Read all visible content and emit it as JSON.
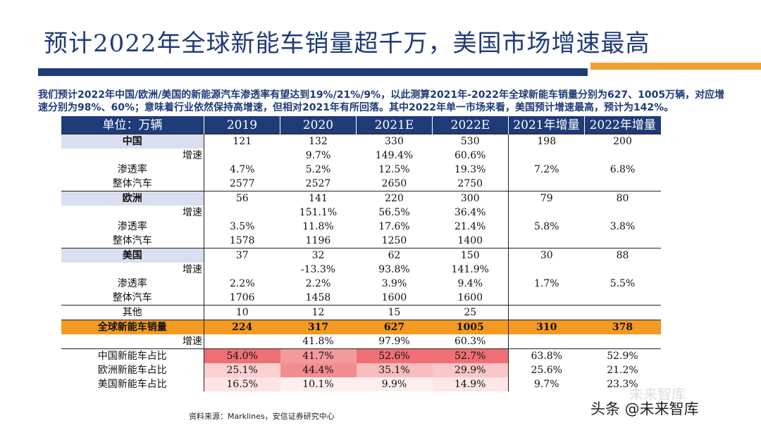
{
  "title": "预计2022年全球新能车销量超千万，美国市场增速最高",
  "intro": "我们预计2022年中国/欧洲/美国的新能源汽车渗透率有望达到19%/21%/9%，以此测算2021年-2022年全球新能车销量分别为627、1005万辆，对应增速分别为98%、60%；意味着行业依然保持高增速，但相对2021年有所回落。其中2022年单一市场来看，美国预计增速最高，预计为142%。",
  "table": {
    "headers": [
      "单位：万辆",
      "2019",
      "2020",
      "2021E",
      "2022E",
      "2021年增量",
      "2022年增量"
    ],
    "rows": [
      [
        "中国",
        "121",
        "132",
        "330",
        "530",
        "198",
        "200"
      ],
      [
        "增速",
        "",
        "9.7%",
        "149.4%",
        "60.6%",
        "",
        ""
      ],
      [
        "渗透率",
        "4.7%",
        "5.2%",
        "12.5%",
        "19.3%",
        "7.2%",
        "6.8%"
      ],
      [
        "整体汽车",
        "2577",
        "2527",
        "2650",
        "2750",
        "",
        ""
      ],
      [
        "欧洲",
        "56",
        "141",
        "220",
        "300",
        "79",
        "80"
      ],
      [
        "增速",
        "",
        "151.1%",
        "56.5%",
        "36.4%",
        "",
        ""
      ],
      [
        "渗透率",
        "3.5%",
        "11.8%",
        "17.6%",
        "21.4%",
        "5.8%",
        "3.8%"
      ],
      [
        "整体汽车",
        "1578",
        "1196",
        "1250",
        "1400",
        "",
        ""
      ],
      [
        "美国",
        "37",
        "32",
        "62",
        "150",
        "30",
        "88"
      ],
      [
        "增速",
        "",
        "-13.3%",
        "93.8%",
        "141.9%",
        "",
        ""
      ],
      [
        "渗透率",
        "2.2%",
        "2.2%",
        "3.9%",
        "9.4%",
        "1.7%",
        "5.5%"
      ],
      [
        "整体汽车",
        "1706",
        "1458",
        "1600",
        "1600",
        "",
        ""
      ],
      [
        "其他",
        "10",
        "12",
        "15",
        "25",
        "",
        ""
      ],
      [
        "全球新能车销量",
        "224",
        "317",
        "627",
        "1005",
        "310",
        "378"
      ],
      [
        "增速",
        "",
        "41.8%",
        "97.9%",
        "60.3%",
        "",
        ""
      ],
      [
        "中国新能车占比",
        "54.0%",
        "41.7%",
        "52.6%",
        "52.7%",
        "63.8%",
        "52.9%"
      ],
      [
        "欧洲新能车占比",
        "25.1%",
        "44.4%",
        "35.1%",
        "29.9%",
        "25.6%",
        "21.2%"
      ],
      [
        "美国新能车占比",
        "16.5%",
        "10.1%",
        "9.9%",
        "14.9%",
        "9.7%",
        "23.3%"
      ]
    ]
  },
  "share_heat_colors": [
    [
      "#ef6f74",
      "#f49a9c",
      "#ef6f74",
      "#ef6f74"
    ],
    [
      "#fad0d1",
      "#f28d90",
      "#f8bcbe",
      "#fac6c8"
    ],
    [
      "#fde3e4",
      "#feeeee",
      "#feefef",
      "#fde6e7"
    ]
  ],
  "colors": {
    "brand_blue": "#1f3b78",
    "accent_orange": "#f0a030",
    "total_row": "#f39a22",
    "group_row": "#d9dff0"
  },
  "source": "资料来源：Marklines，安信证券研究中心",
  "watermark": {
    "upper": "未来智库",
    "lower": "头条 @未来智库"
  }
}
